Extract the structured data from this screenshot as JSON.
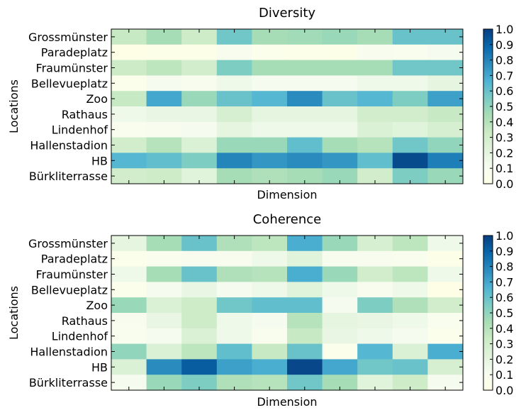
{
  "chart_data": [
    {
      "type": "heatmap",
      "title": "Diversity",
      "xlabel": "Dimension",
      "ylabel": "Locations",
      "rows": [
        "Grossmünster",
        "Paradeplatz",
        "Fraumünster",
        "Bellevueplatz",
        "Zoo",
        "Rathaus",
        "Lindenhof",
        "Hallenstadion",
        "HB",
        "Bürkliterrasse"
      ],
      "n_columns": 10,
      "values": [
        [
          0.35,
          0.45,
          0.32,
          0.58,
          0.45,
          0.46,
          0.48,
          0.45,
          0.6,
          0.6
        ],
        [
          0.02,
          0.03,
          0.03,
          0.1,
          0.05,
          0.04,
          0.03,
          0.1,
          0.08,
          0.12
        ],
        [
          0.33,
          0.38,
          0.3,
          0.55,
          0.45,
          0.45,
          0.45,
          0.45,
          0.58,
          0.58
        ],
        [
          0.05,
          0.12,
          0.1,
          0.15,
          0.12,
          0.12,
          0.12,
          0.15,
          0.15,
          0.2
        ],
        [
          0.35,
          0.7,
          0.48,
          0.6,
          0.65,
          0.78,
          0.6,
          0.65,
          0.55,
          0.72
        ],
        [
          0.15,
          0.18,
          0.18,
          0.28,
          0.2,
          0.2,
          0.2,
          0.3,
          0.3,
          0.35
        ],
        [
          0.08,
          0.1,
          0.12,
          0.2,
          0.15,
          0.15,
          0.15,
          0.25,
          0.22,
          0.28
        ],
        [
          0.3,
          0.4,
          0.25,
          0.48,
          0.48,
          0.62,
          0.45,
          0.4,
          0.58,
          0.5
        ],
        [
          0.65,
          0.62,
          0.55,
          0.8,
          0.75,
          0.78,
          0.75,
          0.62,
          0.97,
          0.82
        ],
        [
          0.3,
          0.32,
          0.22,
          0.45,
          0.42,
          0.45,
          0.48,
          0.3,
          0.55,
          0.48
        ]
      ],
      "vmin": 0,
      "vmax": 1,
      "colormap": "GnBu",
      "colorbar_ticks": [
        "0.0",
        "0.1",
        "0.2",
        "0.3",
        "0.4",
        "0.5",
        "0.6",
        "0.7",
        "0.8",
        "0.9",
        "1.0"
      ]
    },
    {
      "type": "heatmap",
      "title": "Coherence",
      "xlabel": "Dimension",
      "ylabel": "Locations",
      "rows": [
        "Grossmünster",
        "Paradeplatz",
        "Fraumünster",
        "Bellevueplatz",
        "Zoo",
        "Rathaus",
        "Lindenhof",
        "Hallenstadion",
        "HB",
        "Bürkliterrasse"
      ],
      "n_columns": 10,
      "values": [
        [
          0.2,
          0.45,
          0.6,
          0.42,
          0.38,
          0.68,
          0.48,
          0.28,
          0.38,
          0.15
        ],
        [
          0.05,
          0.08,
          0.1,
          0.1,
          0.15,
          0.22,
          0.1,
          0.1,
          0.08,
          0.03
        ],
        [
          0.15,
          0.45,
          0.6,
          0.42,
          0.4,
          0.68,
          0.48,
          0.3,
          0.38,
          0.15
        ],
        [
          0.05,
          0.12,
          0.18,
          0.12,
          0.15,
          0.22,
          0.15,
          0.1,
          0.15,
          0.02
        ],
        [
          0.48,
          0.25,
          0.32,
          0.58,
          0.62,
          0.62,
          0.12,
          0.55,
          0.42,
          0.3
        ],
        [
          0.1,
          0.18,
          0.32,
          0.15,
          0.12,
          0.4,
          0.2,
          0.18,
          0.15,
          0.08
        ],
        [
          0.08,
          0.12,
          0.25,
          0.15,
          0.08,
          0.35,
          0.18,
          0.15,
          0.12,
          0.05
        ],
        [
          0.5,
          0.25,
          0.38,
          0.62,
          0.35,
          0.6,
          0.05,
          0.65,
          0.25,
          0.68
        ],
        [
          0.25,
          0.78,
          0.92,
          0.72,
          0.68,
          0.98,
          0.7,
          0.58,
          0.6,
          0.28
        ],
        [
          0.12,
          0.48,
          0.55,
          0.42,
          0.4,
          0.58,
          0.45,
          0.22,
          0.32,
          0.12
        ]
      ],
      "vmin": 0,
      "vmax": 1,
      "colormap": "GnBu",
      "colorbar_ticks": [
        "0.0",
        "0.1",
        "0.2",
        "0.3",
        "0.4",
        "0.5",
        "0.6",
        "0.7",
        "0.8",
        "0.9",
        "1.0"
      ]
    }
  ]
}
